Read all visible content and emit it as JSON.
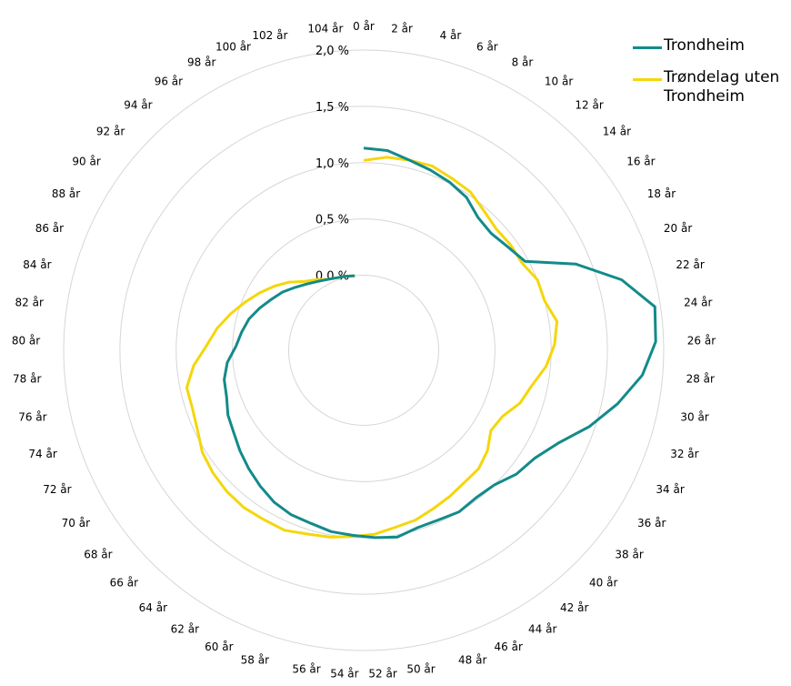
{
  "chart_data": {
    "type": "radar",
    "title": "",
    "categories": [
      "0 år",
      "2 år",
      "4 år",
      "6 år",
      "8 år",
      "10 år",
      "12 år",
      "14 år",
      "16 år",
      "18 år",
      "20 år",
      "22 år",
      "24 år",
      "26 år",
      "28 år",
      "30 år",
      "32 år",
      "34 år",
      "36 år",
      "38 år",
      "40 år",
      "42 år",
      "44 år",
      "46 år",
      "48 år",
      "50 år",
      "52 år",
      "54 år",
      "56 år",
      "58 år",
      "60 år",
      "62 år",
      "64 år",
      "66 år",
      "68 år",
      "70 år",
      "72 år",
      "74 år",
      "76 år",
      "78 år",
      "80 år",
      "82 år",
      "84 år",
      "86 år",
      "88 år",
      "90 år",
      "92 år",
      "94 år",
      "96 år",
      "98 år",
      "100 år",
      "102 år",
      "104 år"
    ],
    "rings": [
      "0,0 %",
      "0,5 %",
      "1,0 %",
      "1,5 %",
      "2,0 %"
    ],
    "rmax": 2.0,
    "series": [
      {
        "name": "Trondheim",
        "color": "#138a8a",
        "values": [
          1.13,
          1.12,
          1.07,
          1.04,
          1.01,
          0.97,
          0.89,
          0.87,
          0.91,
          0.97,
          1.37,
          1.71,
          1.95,
          1.93,
          1.82,
          1.64,
          1.45,
          1.25,
          1.13,
          1.08,
          1.0,
          0.98,
          1.0,
          0.98,
          0.98,
          1.02,
          1.0,
          0.98,
          0.97,
          0.94,
          0.93,
          0.9,
          0.85,
          0.8,
          0.75,
          0.7,
          0.67,
          0.62,
          0.6,
          0.55,
          0.47,
          0.43,
          0.39,
          0.33,
          0.27,
          0.22,
          0.16,
          0.11,
          0.07,
          0.04,
          0.02,
          0.01,
          0.0
        ]
      },
      {
        "name": "Trøndelag uten Trondheim",
        "color": "#f5d60a",
        "values": [
          1.02,
          1.06,
          1.07,
          1.08,
          1.05,
          1.03,
          0.97,
          0.93,
          0.94,
          0.94,
          1.0,
          1.0,
          1.07,
          1.03,
          0.96,
          0.86,
          0.8,
          0.7,
          0.67,
          0.75,
          0.8,
          0.81,
          0.84,
          0.87,
          0.91,
          0.93,
          0.97,
          0.99,
          1.02,
          1.04,
          1.08,
          1.08,
          1.09,
          1.08,
          1.06,
          1.03,
          0.97,
          0.94,
          0.94,
          0.85,
          0.73,
          0.65,
          0.56,
          0.47,
          0.39,
          0.31,
          0.23,
          0.14,
          0.09,
          0.04,
          0.02,
          0.01,
          0.0
        ]
      }
    ]
  },
  "legend": [
    {
      "label": "Trondheim",
      "color": "#138a8a"
    },
    {
      "label": "Trøndelag uten Trondheim",
      "color": "#f5d60a"
    }
  ]
}
